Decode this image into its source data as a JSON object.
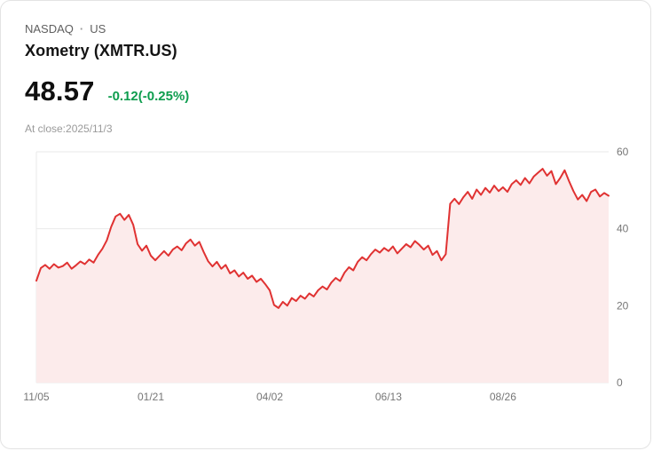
{
  "header": {
    "exchange": "NASDAQ",
    "separator": "·",
    "region": "US",
    "title": "Xometry (XMTR.US)"
  },
  "quote": {
    "price": "48.57",
    "change_text": "-0.12(-0.25%)",
    "change_color": "#0e9d4e",
    "as_of": "At close:2025/11/3"
  },
  "chart_data": {
    "type": "area",
    "title": "Xometry (XMTR.US) 1-year price history",
    "xlabel": "",
    "ylabel": "",
    "ylim": [
      0,
      60
    ],
    "y_ticks": [
      0,
      20,
      40,
      60
    ],
    "y_tick_side": "right",
    "grid": "horizontal",
    "legend": "none",
    "line_color": "#e03232",
    "fill_color": "#fcebeb",
    "grid_color": "#eaeaea",
    "tick_text_color": "#767676",
    "x_tick_labels": [
      "11/05",
      "01/21",
      "04/02",
      "06/13",
      "08/26"
    ],
    "x_tick_indices": [
      0,
      26,
      53,
      80,
      106
    ],
    "values": [
      26.5,
      29.8,
      30.6,
      29.6,
      30.8,
      29.9,
      30.3,
      31.2,
      29.6,
      30.5,
      31.5,
      30.8,
      32.0,
      31.2,
      33.2,
      34.8,
      37.0,
      40.5,
      43.2,
      43.9,
      42.3,
      43.6,
      41.0,
      36.0,
      34.3,
      35.6,
      33.0,
      31.8,
      33.0,
      34.2,
      33.0,
      34.6,
      35.4,
      34.4,
      36.2,
      37.2,
      35.6,
      36.6,
      34.0,
      31.6,
      30.2,
      31.4,
      29.6,
      30.6,
      28.4,
      29.2,
      27.6,
      28.6,
      27.0,
      27.8,
      26.2,
      27.0,
      25.6,
      24.0,
      20.2,
      19.4,
      21.0,
      20.0,
      22.0,
      21.2,
      22.6,
      21.8,
      23.2,
      22.4,
      24.0,
      25.0,
      24.2,
      26.0,
      27.2,
      26.4,
      28.6,
      30.0,
      29.2,
      31.4,
      32.6,
      31.8,
      33.4,
      34.6,
      33.8,
      35.0,
      34.2,
      35.4,
      33.6,
      34.8,
      36.0,
      35.2,
      36.8,
      35.8,
      34.6,
      35.6,
      33.2,
      34.2,
      31.8,
      33.4,
      46.5,
      47.8,
      46.4,
      48.2,
      49.6,
      47.8,
      50.2,
      48.8,
      50.6,
      49.4,
      51.2,
      49.8,
      50.8,
      49.6,
      51.6,
      52.6,
      51.4,
      53.2,
      51.8,
      53.6,
      54.6,
      55.6,
      53.8,
      55.0,
      51.6,
      53.2,
      55.2,
      52.4,
      49.8,
      47.6,
      48.8,
      47.2,
      49.6,
      50.2,
      48.4,
      49.3,
      48.57
    ]
  }
}
